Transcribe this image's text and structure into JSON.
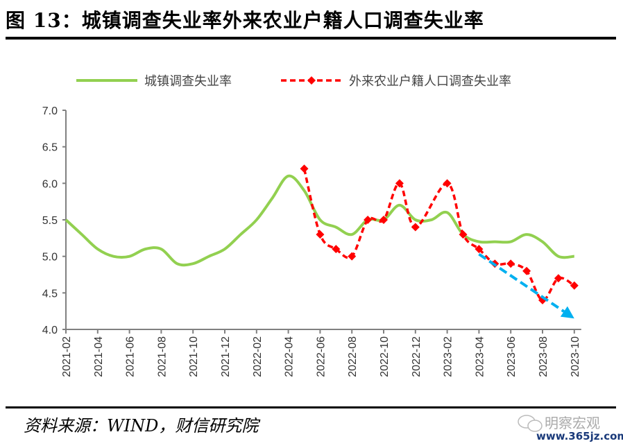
{
  "title": "图 13：城镇调查失业率外来农业户籍人口调查失业率",
  "source": "资料来源：WIND，财信研究院",
  "watermark": {
    "name": "明察宏观",
    "url": "www.365jz.com",
    "icon": "wechat-icon"
  },
  "chart_data": {
    "type": "line",
    "ylim": [
      4.0,
      7.0
    ],
    "yticks": [
      "7.0",
      "6.5",
      "6.0",
      "5.5",
      "5.0",
      "4.5",
      "4.0"
    ],
    "grid": false,
    "legend_placement": "top",
    "x": [
      "2021-02",
      "2021-03",
      "2021-04",
      "2021-05",
      "2021-06",
      "2021-07",
      "2021-08",
      "2021-09",
      "2021-10",
      "2021-11",
      "2021-12",
      "2022-01",
      "2022-02",
      "2022-03",
      "2022-04",
      "2022-05",
      "2022-06",
      "2022-07",
      "2022-08",
      "2022-09",
      "2022-10",
      "2022-11",
      "2022-12",
      "2023-01",
      "2023-02",
      "2023-03",
      "2023-04",
      "2023-05",
      "2023-06",
      "2023-07",
      "2023-08",
      "2023-09",
      "2023-10"
    ],
    "xtick_labels": [
      "2021-02",
      "2021-04",
      "2021-06",
      "2021-08",
      "2021-10",
      "2021-12",
      "2022-02",
      "2022-04",
      "2022-06",
      "2022-08",
      "2022-10",
      "2022-12",
      "2023-02",
      "2023-04",
      "2023-06",
      "2023-08",
      "2023-10"
    ],
    "series": [
      {
        "name": "城镇调查失业率",
        "color": "#92d050",
        "style": "smooth-solid",
        "values": [
          5.5,
          5.3,
          5.1,
          5.0,
          5.0,
          5.1,
          5.1,
          4.9,
          4.9,
          5.0,
          5.1,
          5.3,
          5.5,
          5.8,
          6.1,
          5.9,
          5.5,
          5.4,
          5.3,
          5.5,
          5.5,
          5.7,
          5.5,
          5.5,
          5.6,
          5.3,
          5.2,
          5.2,
          5.2,
          5.3,
          5.2,
          5.0,
          5.0
        ]
      },
      {
        "name": "外来农业户籍人口调查失业率",
        "color": "#ff0000",
        "style": "dashed-diamond",
        "values": [
          null,
          null,
          null,
          null,
          null,
          null,
          null,
          null,
          null,
          null,
          null,
          null,
          null,
          null,
          null,
          6.2,
          5.3,
          5.1,
          5.0,
          5.5,
          5.5,
          6.0,
          5.4,
          null,
          6.0,
          5.3,
          5.1,
          4.9,
          4.9,
          4.8,
          4.4,
          4.7,
          4.6
        ]
      }
    ],
    "annotations": [
      {
        "type": "trend-arrow",
        "color": "#00b0f0",
        "from": [
          "2023-04",
          5.03
        ],
        "to": [
          "2023-10",
          4.15
        ]
      }
    ]
  }
}
